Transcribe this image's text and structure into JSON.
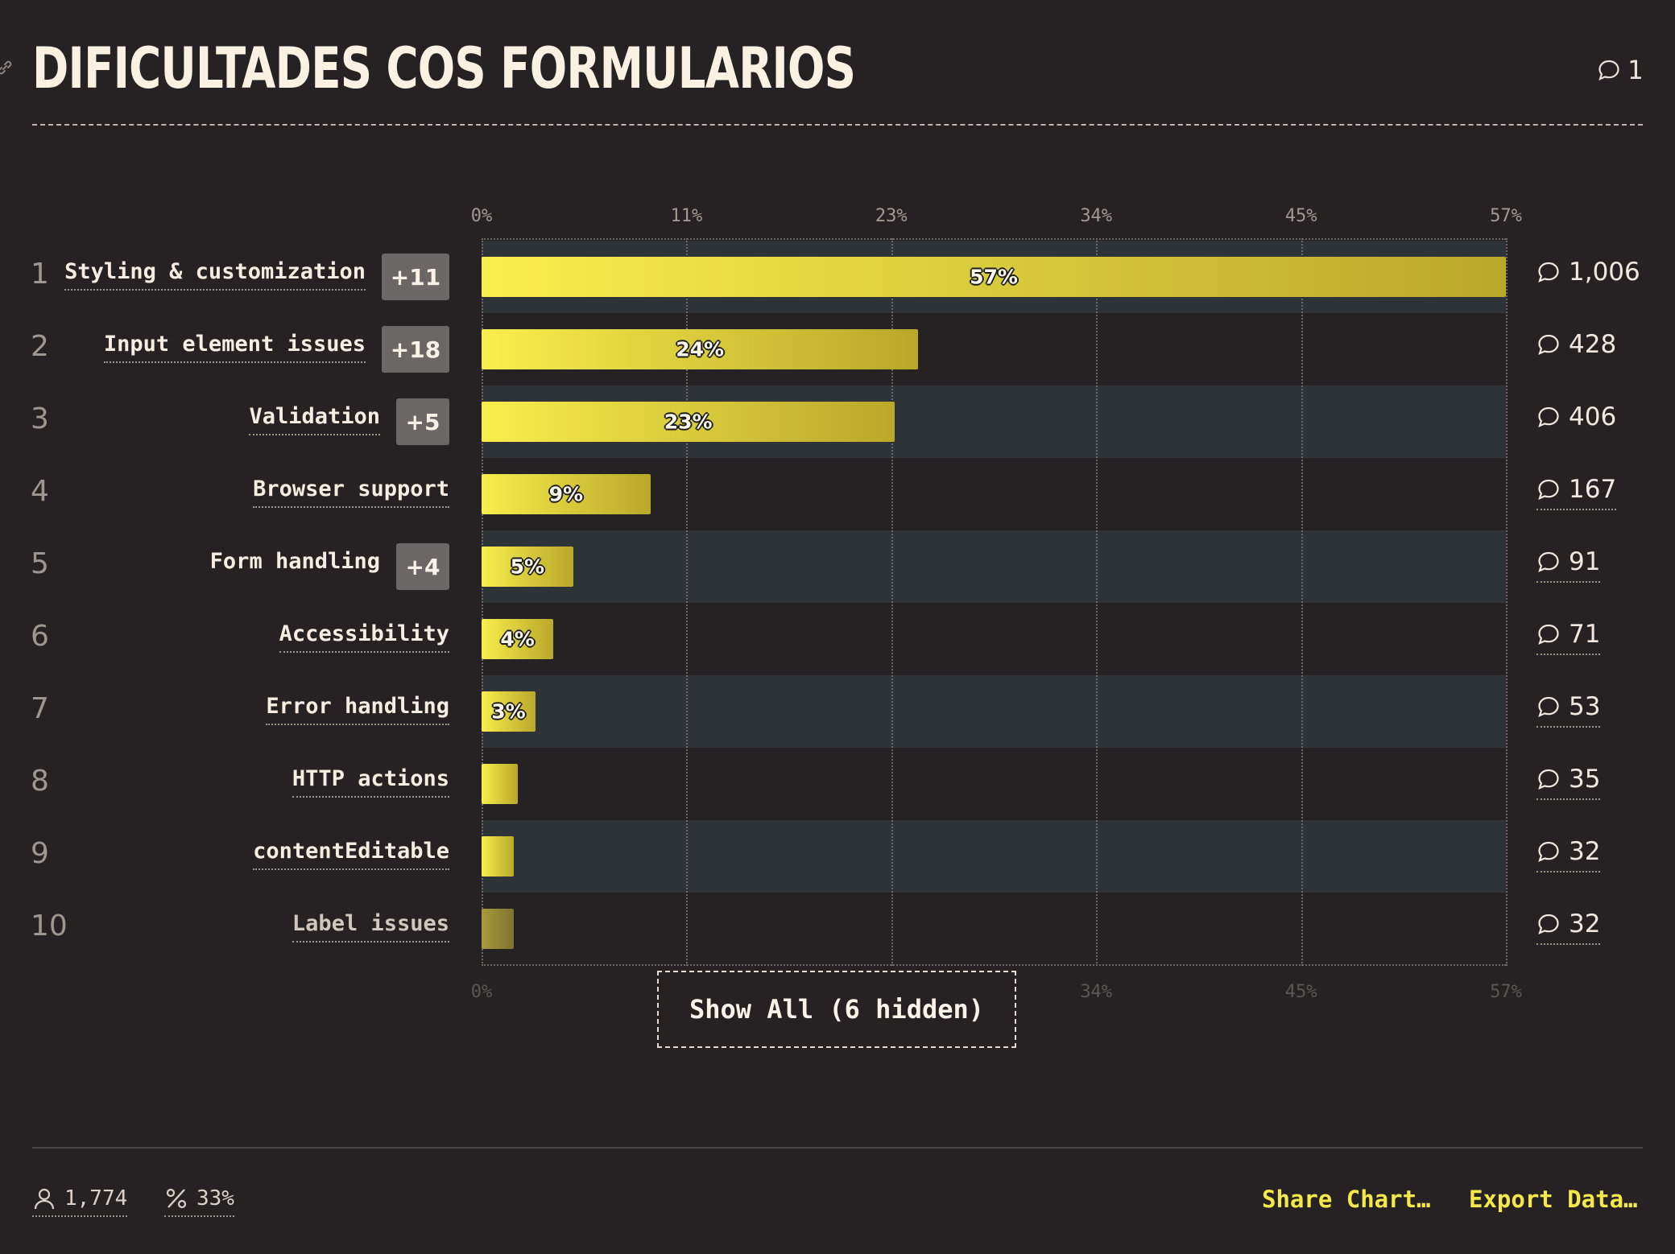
{
  "header": {
    "title": "DIFICULTADES COS FORMULARIOS",
    "comment_count": "1"
  },
  "chart_data": {
    "type": "bar",
    "orientation": "horizontal",
    "title": "DIFICULTADES COS FORMULARIOS",
    "xlim": [
      0,
      57
    ],
    "x_ticks": [
      "0%",
      "11%",
      "23%",
      "34%",
      "45%",
      "57%"
    ],
    "x_tick_values": [
      0,
      11.4,
      22.8,
      34.2,
      45.6,
      57
    ],
    "categories": [
      "Styling & customization",
      "Input element issues",
      "Validation",
      "Browser support",
      "Form handling",
      "Accessibility",
      "Error handling",
      "HTTP actions",
      "contentEditable",
      "Label issues"
    ],
    "values": [
      57,
      24.3,
      23,
      9.4,
      5.1,
      4,
      3,
      2,
      1.8,
      1.8
    ],
    "value_labels": [
      "57%",
      "24%",
      "23%",
      "9%",
      "5%",
      "4%",
      "3%",
      "",
      "",
      ""
    ],
    "counts": [
      "1,006",
      "428",
      "406",
      "167",
      "91",
      "71",
      "53",
      "35",
      "32",
      "32"
    ],
    "ranks": [
      "1",
      "2",
      "3",
      "4",
      "5",
      "6",
      "7",
      "8",
      "9",
      "10"
    ],
    "badges": [
      "+11",
      "+18",
      "+5",
      "",
      "+4",
      "",
      "",
      "",
      "",
      ""
    ],
    "colors": {
      "bar_start": "#f8ee4c",
      "bar_end": "#b9a82a",
      "band": "#2d3336",
      "background": "#262223"
    }
  },
  "show_all_label": "Show All (6 hidden)",
  "footer": {
    "respondents": "1,774",
    "percent": "33%",
    "share_label": "Share Chart…",
    "export_label": "Export Data…"
  }
}
